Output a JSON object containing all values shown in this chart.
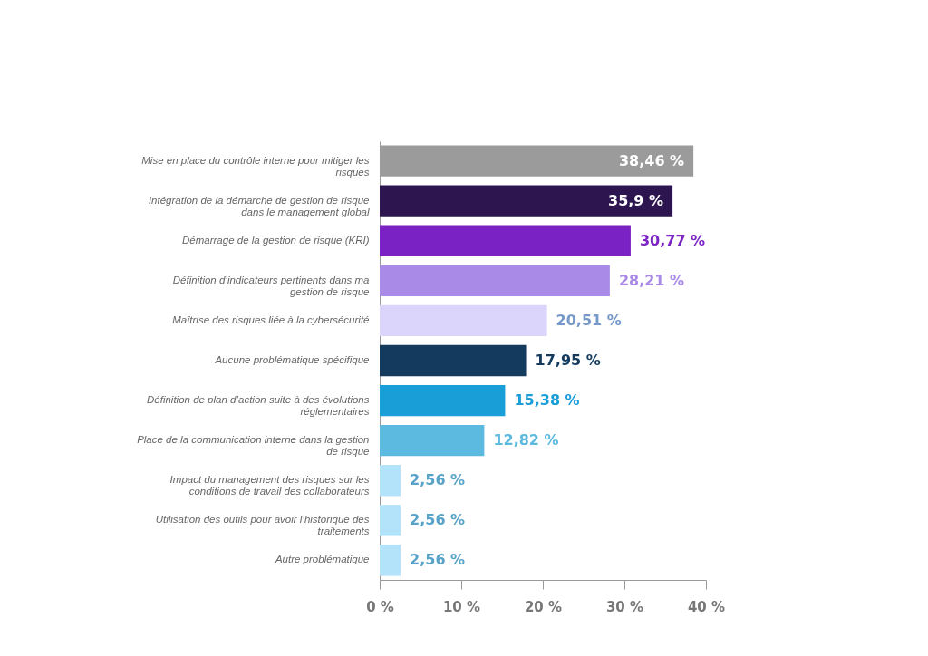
{
  "chart_data": {
    "type": "bar",
    "orientation": "horizontal",
    "categories": [
      "Mise en place du contrôle interne pour mitiger les risques",
      "Intégration de la démarche de gestion de risque dans le management global",
      "Démarrage de la gestion de risque (KRI)",
      "Définition d’indicateurs pertinents dans ma gestion de risque",
      "Maîtrise des risques liée à la cybersécurité",
      "Aucune problématique spécifique",
      "Définition de plan d’action suite à des évolutions réglementaires",
      "Place de la communication interne dans la gestion de risque",
      "Impact du management des risques sur les conditions de travail des collaborateurs",
      "Utilisation des outils pour avoir l’historique des traitements",
      "Autre problématique"
    ],
    "values": [
      38.46,
      35.9,
      30.77,
      28.21,
      20.51,
      17.95,
      15.38,
      12.82,
      2.56,
      2.56,
      2.56
    ],
    "value_labels": [
      "38,46 %",
      "35,9 %",
      "30,77 %",
      "28,21 %",
      "20,51 %",
      "17,95 %",
      "15,38 %",
      "12,82 %",
      "2,56 %",
      "2,56 %",
      "2,56 %"
    ],
    "colors": [
      "#9b9b9b",
      "#2d1650",
      "#7b22c4",
      "#a98ae6",
      "#dcd5fb",
      "#143a5e",
      "#1a9ed8",
      "#5cb9e0",
      "#b3e3fb",
      "#b3e3fb",
      "#b3e3fb"
    ],
    "xlim": [
      0,
      40
    ],
    "xticks": [
      {
        "value": 0,
        "label": "0 %"
      },
      {
        "value": 10,
        "label": "10 %"
      },
      {
        "value": 20,
        "label": "20 %"
      },
      {
        "value": 30,
        "label": "30 %"
      },
      {
        "value": 40,
        "label": "40 %"
      }
    ],
    "grid": false
  }
}
